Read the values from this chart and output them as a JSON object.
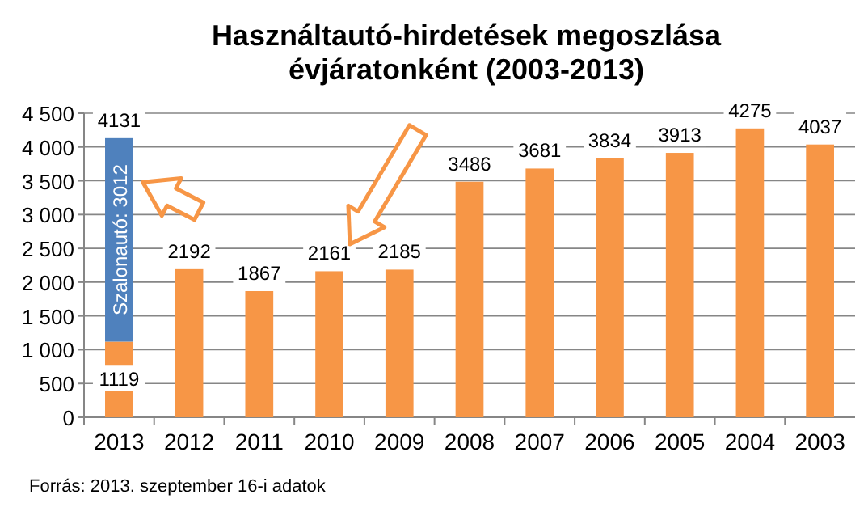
{
  "chart_data": {
    "type": "bar",
    "title": "Használtautó-hirdetések megoszlása évjáratonként (2003-2013)",
    "categories": [
      "2013",
      "2012",
      "2011",
      "2010",
      "2009",
      "2008",
      "2007",
      "2006",
      "2005",
      "2004",
      "2003"
    ],
    "stacked": true,
    "series": [
      {
        "color": "#f79646",
        "values": [
          1119,
          2192,
          1867,
          2161,
          2185,
          3486,
          3681,
          3834,
          3913,
          4275,
          4037
        ],
        "value_labels": [
          "1119",
          "2192",
          "1867",
          "2161",
          "2185",
          "3486",
          "3681",
          "3834",
          "3913",
          "4275",
          "4037"
        ]
      },
      {
        "color": "#4f81bd",
        "values": [
          3012,
          null,
          null,
          null,
          null,
          null,
          null,
          null,
          null,
          null,
          null
        ],
        "value_labels": [
          "Szalonautó: 3012",
          null,
          null,
          null,
          null,
          null,
          null,
          null,
          null,
          null,
          null
        ]
      }
    ],
    "totals": [
      "4131",
      null,
      null,
      null,
      null,
      null,
      null,
      null,
      null,
      null,
      null
    ],
    "ylim": [
      0,
      4500
    ],
    "yticks": [
      {
        "value": 0,
        "label": "0"
      },
      {
        "value": 500,
        "label": "500"
      },
      {
        "value": 1000,
        "label": "1 000"
      },
      {
        "value": 1500,
        "label": "1 500"
      },
      {
        "value": 2000,
        "label": "2 000"
      },
      {
        "value": 2500,
        "label": "2 500"
      },
      {
        "value": 3000,
        "label": "3 000"
      },
      {
        "value": 3500,
        "label": "3 500"
      },
      {
        "value": 4000,
        "label": "4 000"
      },
      {
        "value": 4500,
        "label": "4 500"
      }
    ],
    "grid": "y",
    "annotations": [
      "Forrás: 2013. szeptember 16-i adatok"
    ]
  }
}
